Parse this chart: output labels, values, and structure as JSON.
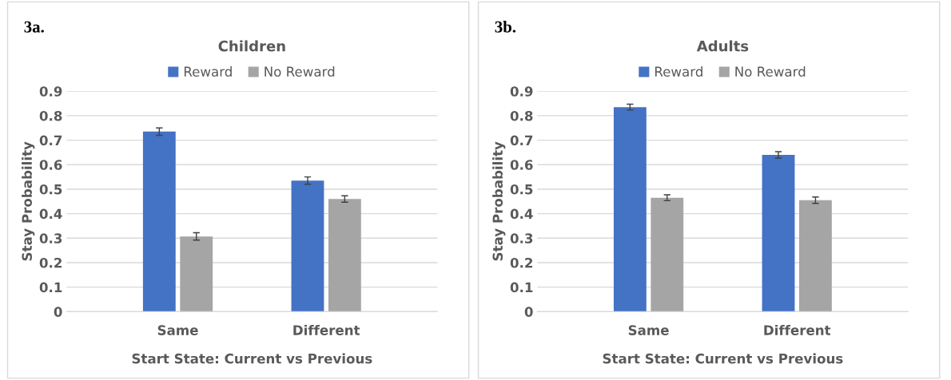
{
  "chart_data": [
    {
      "type": "bar",
      "title": "Children",
      "xlabel": "Start State: Current vs Previous",
      "ylabel": "Stay Probability",
      "annotations": [
        "3a."
      ],
      "categories": [
        "Same",
        "Different"
      ],
      "series": [
        {
          "name": "Reward",
          "color": "#4472c4",
          "values": [
            0.735,
            0.535
          ],
          "errors": [
            0.015,
            0.015
          ]
        },
        {
          "name": "No Reward",
          "color": "#a5a5a5",
          "values": [
            0.307,
            0.46
          ],
          "errors": [
            0.015,
            0.013
          ]
        }
      ],
      "ylim": [
        0,
        0.9
      ],
      "yticks": [
        0,
        0.1,
        0.2,
        0.3,
        0.4,
        0.5,
        0.6,
        0.7,
        0.8,
        0.9
      ],
      "grid": "y",
      "legend": "top"
    },
    {
      "type": "bar",
      "title": "Adults",
      "xlabel": "Start State: Current vs Previous",
      "ylabel": "Stay Probability",
      "annotations": [
        "3b."
      ],
      "categories": [
        "Same",
        "Different"
      ],
      "series": [
        {
          "name": "Reward",
          "color": "#4472c4",
          "values": [
            0.835,
            0.64
          ],
          "errors": [
            0.012,
            0.013
          ]
        },
        {
          "name": "No Reward",
          "color": "#a5a5a5",
          "values": [
            0.465,
            0.455
          ],
          "errors": [
            0.012,
            0.013
          ]
        }
      ],
      "ylim": [
        0,
        0.9
      ],
      "yticks": [
        0,
        0.1,
        0.2,
        0.3,
        0.4,
        0.5,
        0.6,
        0.7,
        0.8,
        0.9
      ],
      "grid": "y",
      "legend": "top"
    }
  ]
}
